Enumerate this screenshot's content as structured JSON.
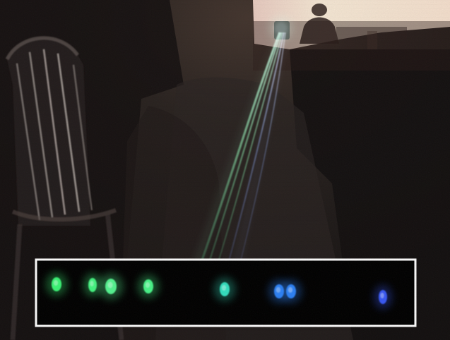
{
  "scene": {
    "subject": "laser-beams-in-dark-room",
    "inset": "spectrum-dots-strip"
  },
  "colors": {
    "room_dark": "#1b1715",
    "window_glow": "#f3e4cf",
    "beam_green": "#8ff2b6",
    "beam_blue": "#7fa6ff",
    "dot_green": "#3cff7a",
    "dot_teal": "#34e9c8",
    "dot_blue": "#2f86ff",
    "dot_indigo": "#3a5cff",
    "inset_border": "#ffffff",
    "inset_bg": "#000000"
  },
  "spectrum_dots": [
    {
      "name": "green",
      "color": "#3cff7a"
    },
    {
      "name": "green",
      "color": "#46ff86"
    },
    {
      "name": "green",
      "color": "#58ff96"
    },
    {
      "name": "green",
      "color": "#4cff8e"
    },
    {
      "name": "teal",
      "color": "#34e9c8"
    },
    {
      "name": "blue",
      "color": "#2f86ff"
    },
    {
      "name": "blue",
      "color": "#2f86ff"
    },
    {
      "name": "indigo",
      "color": "#3a5cff"
    }
  ]
}
